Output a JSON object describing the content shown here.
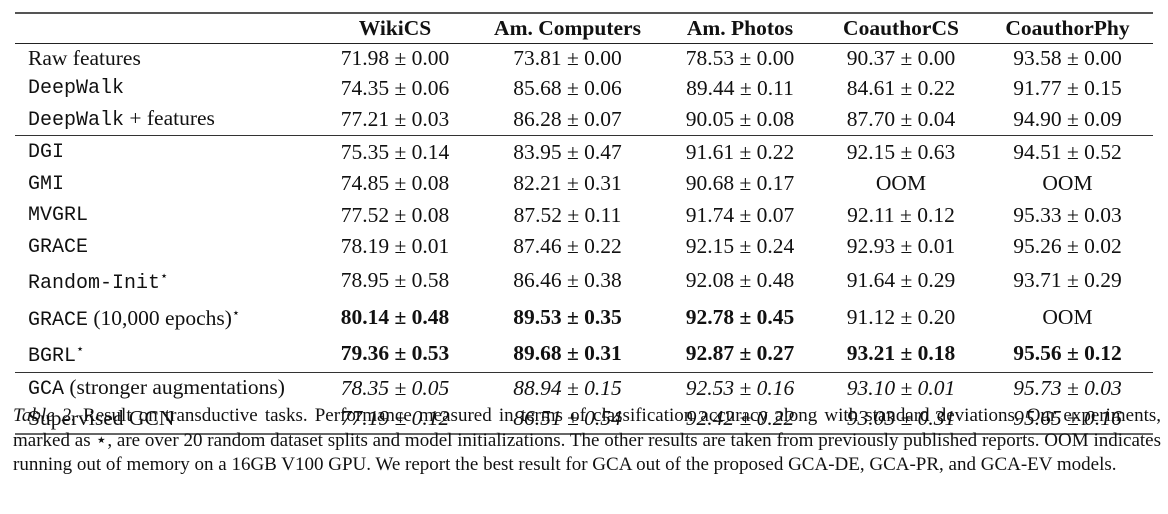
{
  "table": {
    "columns": [
      "",
      "WikiCS",
      "Am. Computers",
      "Am. Photos",
      "CoauthorCS",
      "CoauthorPhy"
    ],
    "groups": [
      {
        "rows": [
          {
            "method": "Raw features",
            "method_style": "serif",
            "star": "",
            "values": [
              "71.98 ± 0.00",
              "73.81 ± 0.00",
              "78.53 ± 0.00",
              "90.37 ± 0.00",
              "93.58 ± 0.00"
            ],
            "style": [
              "",
              "",
              "",
              "",
              ""
            ]
          },
          {
            "method": "DeepWalk",
            "method_style": "mono",
            "star": "",
            "values": [
              "74.35 ± 0.06",
              "85.68 ± 0.06",
              "89.44 ± 0.11",
              "84.61 ± 0.22",
              "91.77 ± 0.15"
            ],
            "style": [
              "",
              "",
              "",
              "",
              ""
            ]
          },
          {
            "method": "DeepWalk",
            "method_suffix": " + features",
            "method_style": "mono",
            "star": "",
            "values": [
              "77.21 ± 0.03",
              "86.28 ± 0.07",
              "90.05 ± 0.08",
              "87.70 ± 0.04",
              "94.90 ± 0.09"
            ],
            "style": [
              "",
              "",
              "",
              "",
              ""
            ]
          }
        ]
      },
      {
        "rows": [
          {
            "method": "DGI",
            "method_style": "mono",
            "star": "",
            "values": [
              "75.35 ± 0.14",
              "83.95 ± 0.47",
              "91.61 ± 0.22",
              "92.15 ± 0.63",
              "94.51 ± 0.52"
            ],
            "style": [
              "",
              "",
              "",
              "",
              ""
            ]
          },
          {
            "method": "GMI",
            "method_style": "mono",
            "star": "",
            "values": [
              "74.85 ± 0.08",
              "82.21 ± 0.31",
              "90.68 ± 0.17",
              "OOM",
              "OOM"
            ],
            "style": [
              "",
              "",
              "",
              "",
              ""
            ]
          },
          {
            "method": "MVGRL",
            "method_style": "mono",
            "star": "",
            "values": [
              "77.52 ± 0.08",
              "87.52 ± 0.11",
              "91.74 ± 0.07",
              "92.11 ± 0.12",
              "95.33 ± 0.03"
            ],
            "style": [
              "",
              "",
              "",
              "",
              ""
            ]
          },
          {
            "method": "GRACE",
            "method_style": "mono",
            "star": "",
            "values": [
              "78.19 ± 0.01",
              "87.46 ± 0.22",
              "92.15 ± 0.24",
              "92.93 ± 0.01",
              "95.26 ± 0.02"
            ],
            "style": [
              "",
              "",
              "",
              "",
              ""
            ]
          },
          {
            "method": "Random-Init",
            "method_style": "mono",
            "star": "⋆",
            "values": [
              "78.95 ± 0.58",
              "86.46 ± 0.38",
              "92.08 ± 0.48",
              "91.64 ± 0.29",
              "93.71 ± 0.29"
            ],
            "style": [
              "",
              "",
              "",
              "",
              ""
            ]
          },
          {
            "method": "GRACE",
            "method_suffix": " (10,000 epochs)",
            "method_style": "mono",
            "star": "⋆",
            "values": [
              "80.14 ± 0.48",
              "89.53 ± 0.35",
              "92.78 ± 0.45",
              "91.12 ± 0.20",
              "OOM"
            ],
            "style": [
              "bold",
              "bold",
              "bold",
              "",
              ""
            ]
          },
          {
            "method": "BGRL",
            "method_style": "mono",
            "star": "⋆",
            "values": [
              "79.36 ± 0.53",
              "89.68 ± 0.31",
              "92.87 ± 0.27",
              "93.21 ± 0.18",
              "95.56 ± 0.12"
            ],
            "style": [
              "bold",
              "bold",
              "bold",
              "bold",
              "bold"
            ]
          }
        ]
      },
      {
        "rows": [
          {
            "method": "GCA",
            "method_suffix": " (stronger augmentations)",
            "method_style": "mono",
            "star": "",
            "values": [
              "78.35 ± 0.05",
              "88.94 ± 0.15",
              "92.53 ± 0.16",
              "93.10 ± 0.01",
              "95.73 ± 0.03"
            ],
            "style": [
              "ital",
              "ital",
              "ital",
              "ital",
              "ital"
            ]
          },
          {
            "method": "Supervised GCN",
            "method_style": "serif",
            "star": "",
            "values": [
              "77.19 ± 0.12",
              "86.51 ± 0.54",
              "92.42 ± 0.22",
              "93.03 ± 0.31",
              "95.65 ± 0.16"
            ],
            "style": [
              "ital",
              "ital",
              "ital",
              "ital",
              "ital"
            ]
          }
        ]
      }
    ]
  },
  "caption": {
    "label": "Table 2.",
    "text": " Result on transductive tasks. Performance measured in terms of classification accuracy along with standard deviations. Our experiments, marked as ⋆, are over 20 random dataset splits and model initializations. The other results are taken from previously published reports. OOM indicates running out of memory on a 16GB V100 GPU. We report the best result for GCA out of the proposed GCA-DE, GCA-PR, and GCA-EV models."
  }
}
